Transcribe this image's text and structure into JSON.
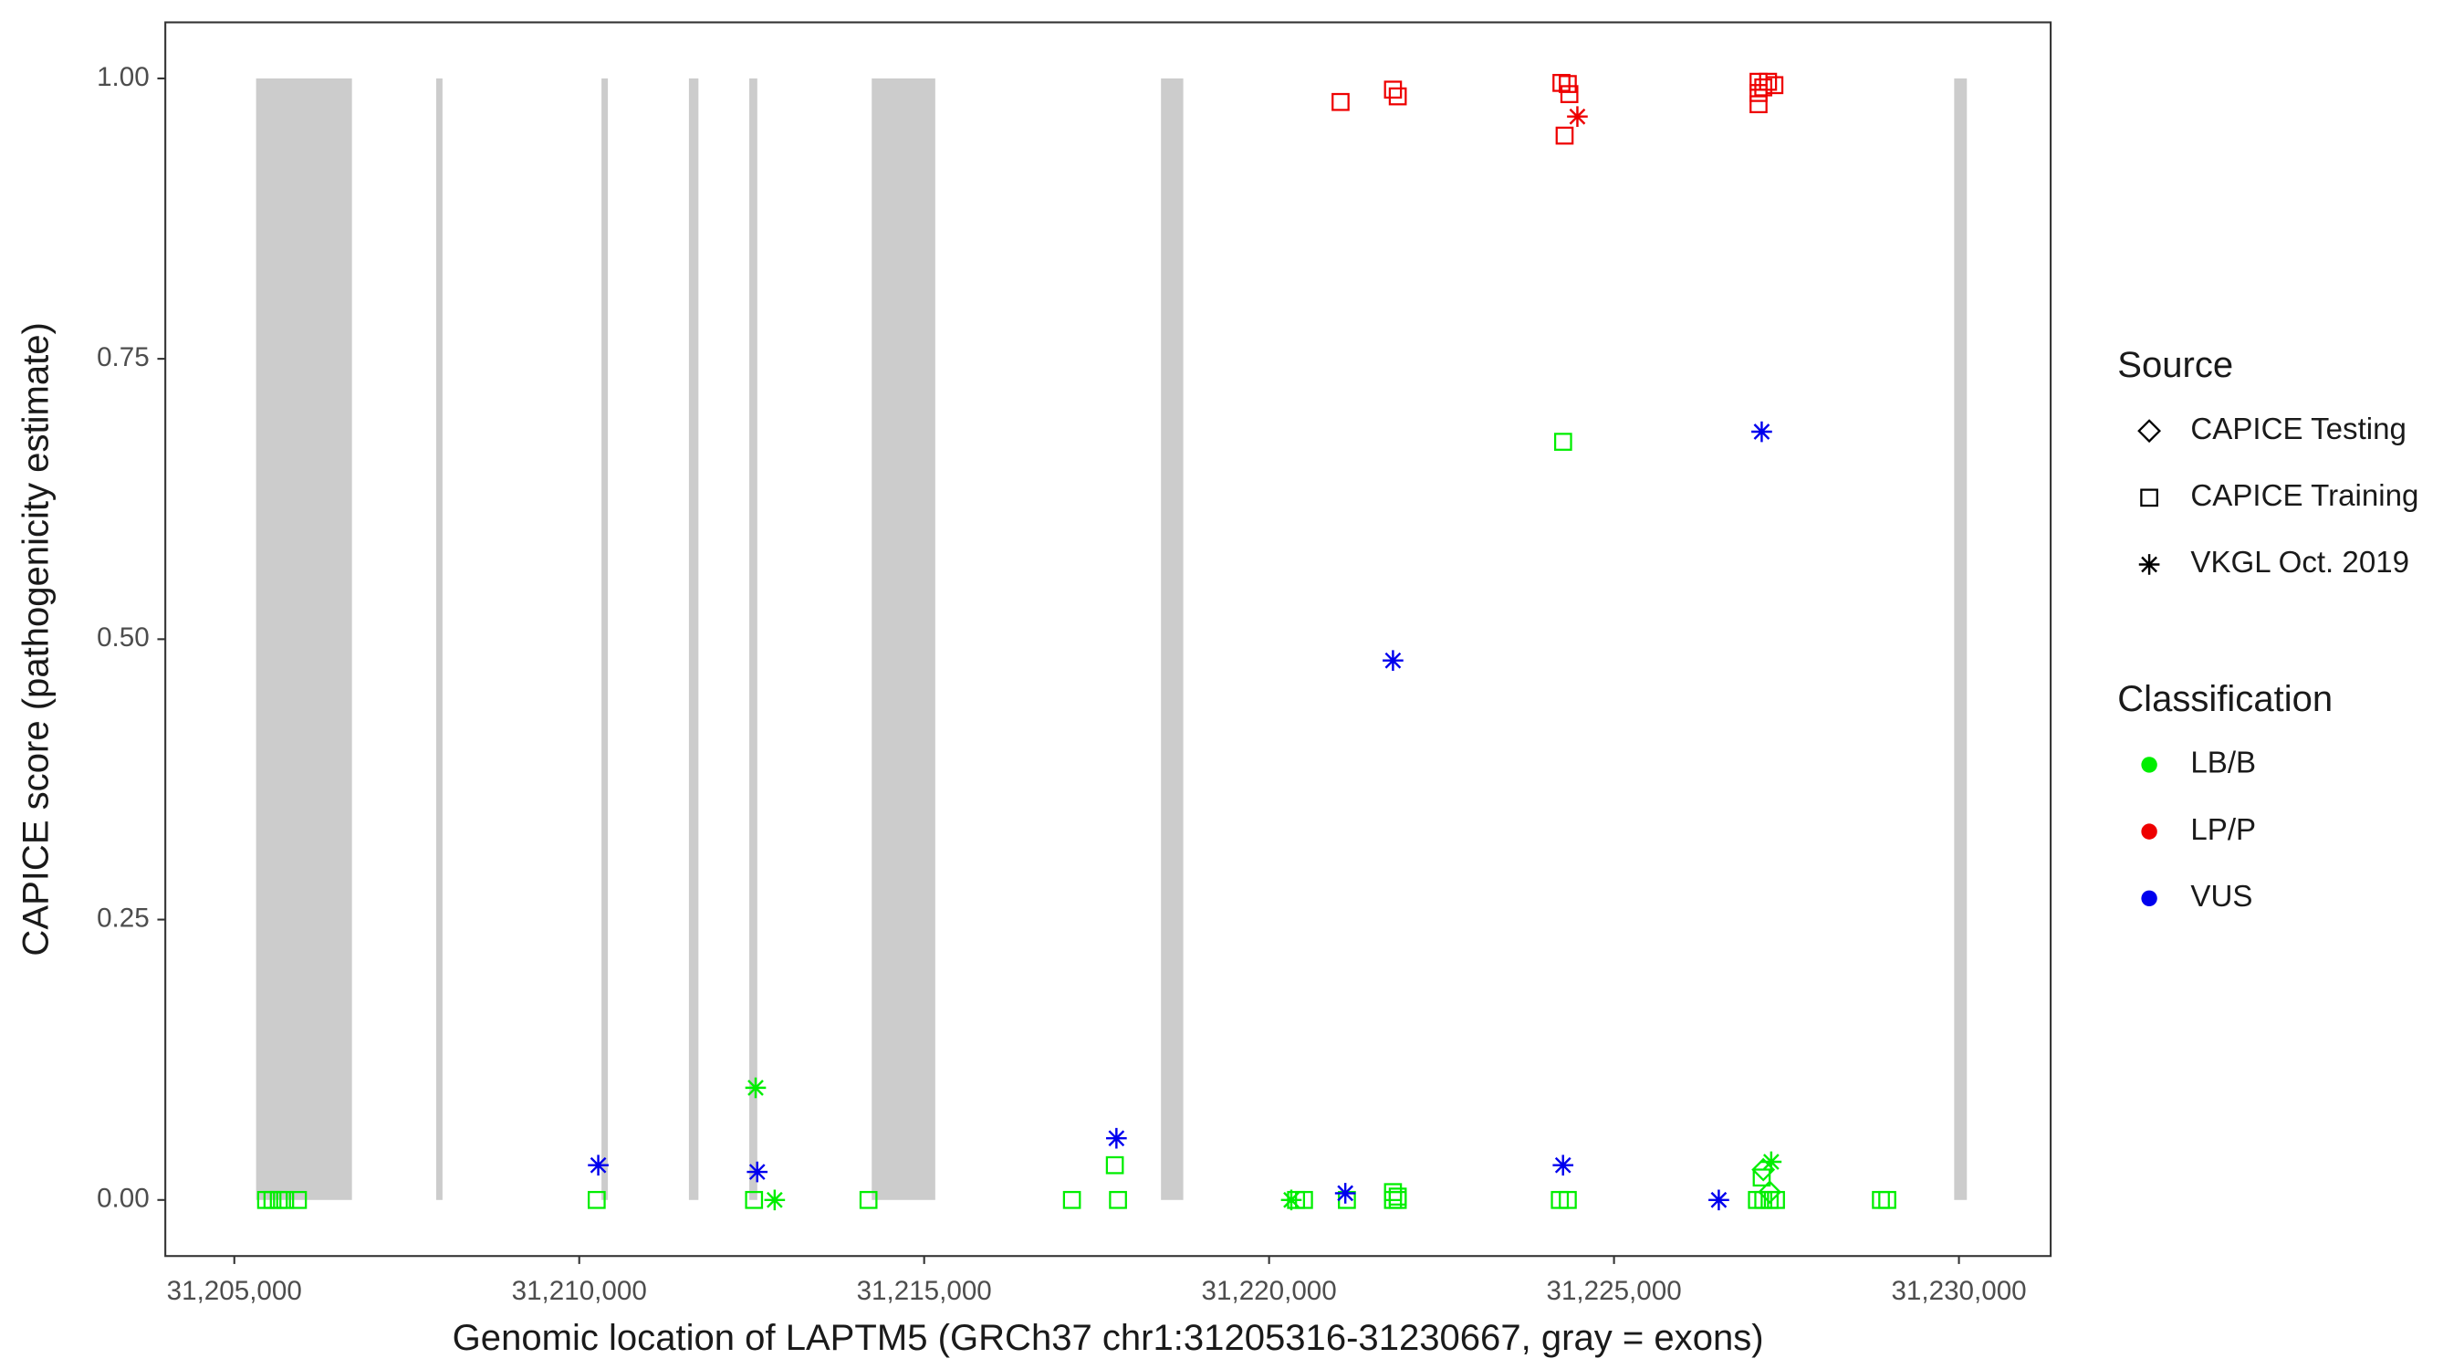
{
  "chart_data": {
    "type": "scatter",
    "xlabel": "Genomic location of LAPTM5 (GRCh37 chr1:31205316-31230667, gray = exons)",
    "ylabel": "CAPICE score (pathogenicity estimate)",
    "xlim": [
      31204000,
      31231330
    ],
    "ylim": [
      -0.05,
      1.05
    ],
    "xticks": [
      {
        "value": 31205000,
        "label": "31,205,000"
      },
      {
        "value": 31210000,
        "label": "31,210,000"
      },
      {
        "value": 31215000,
        "label": "31,215,000"
      },
      {
        "value": 31220000,
        "label": "31,220,000"
      },
      {
        "value": 31225000,
        "label": "31,225,000"
      },
      {
        "value": 31230000,
        "label": "31,230,000"
      }
    ],
    "yticks": [
      {
        "value": 0,
        "label": "0.00"
      },
      {
        "value": 0.25,
        "label": "0.25"
      },
      {
        "value": 0.5,
        "label": "0.50"
      },
      {
        "value": 0.75,
        "label": "0.75"
      },
      {
        "value": 1,
        "label": "1.00"
      }
    ],
    "exon_color": "#cccccc",
    "exons": {
      "start": [
        31205316,
        31207926,
        31210323,
        31211590,
        31212465,
        31214240,
        31218433,
        31229931
      ],
      "end": [
        31206705,
        31208018,
        31210415,
        31211728,
        31212581,
        31215161,
        31218756,
        31230115
      ],
      "top": 1
    },
    "legend": {
      "source": {
        "title": "Source",
        "items": [
          {
            "name": "CAPICE Testing",
            "shape": "diamond"
          },
          {
            "name": "CAPICE Training",
            "shape": "square"
          },
          {
            "name": "VKGL Oct. 2019",
            "shape": "star"
          }
        ]
      },
      "classification": {
        "title": "Classification",
        "items": [
          {
            "name": "LB/B",
            "color": "#00ee00"
          },
          {
            "name": "LP/P",
            "color": "#ee0000"
          },
          {
            "name": "VUS",
            "color": "#0000ee"
          }
        ]
      }
    },
    "series": [
      {
        "shape": "square",
        "color": "#00ee00",
        "x": [
          31205461,
          31205553,
          31205645,
          31205737,
          31205922,
          31210253,
          31212534,
          31214193,
          31217142,
          31217810,
          31220391,
          31220506,
          31221128,
          31221796,
          31221865,
          31224215,
          31224330,
          31227072,
          31227164,
          31227256,
          31227348,
          31228869,
          31228961,
          31217764,
          31221796,
          31221865,
          31227141,
          31224262
        ],
        "y": [
          0,
          0,
          0,
          0,
          0,
          0,
          0,
          0,
          0,
          0,
          0,
          0,
          0,
          0,
          0,
          0,
          0,
          0,
          0,
          0,
          0,
          0,
          0,
          0.031,
          0.007,
          0.003,
          0.02,
          0.676
        ]
      },
      {
        "shape": "diamond",
        "color": "#00ee00",
        "x": [
          31227164,
          31227256
        ],
        "y": [
          0.027,
          0.007
        ]
      },
      {
        "shape": "star",
        "color": "#00ee00",
        "x": [
          31212557,
          31212833,
          31220322,
          31227279
        ],
        "y": [
          0.1,
          0,
          0,
          0.034
        ]
      },
      {
        "shape": "square",
        "color": "#ee0000",
        "x": [
          31221036,
          31221796,
          31221865,
          31224238,
          31224330,
          31224353,
          31224284,
          31227095,
          31227164,
          31227233,
          31227325,
          31227095,
          31227095
        ],
        "y": [
          0.979,
          0.99,
          0.984,
          0.996,
          0.995,
          0.986,
          0.949,
          0.997,
          0.992,
          0.997,
          0.994,
          0.977,
          0.987
        ]
      },
      {
        "shape": "star",
        "color": "#ee0000",
        "x": [
          31224469
        ],
        "y": [
          0.966
        ]
      },
      {
        "shape": "star",
        "color": "#0000ee",
        "x": [
          31210276,
          31212580,
          31217787,
          31221105,
          31221796,
          31224261,
          31226519,
          31227141
        ],
        "y": [
          0.031,
          0.025,
          0.055,
          0.006,
          0.481,
          0.031,
          0,
          0.685
        ]
      }
    ]
  }
}
